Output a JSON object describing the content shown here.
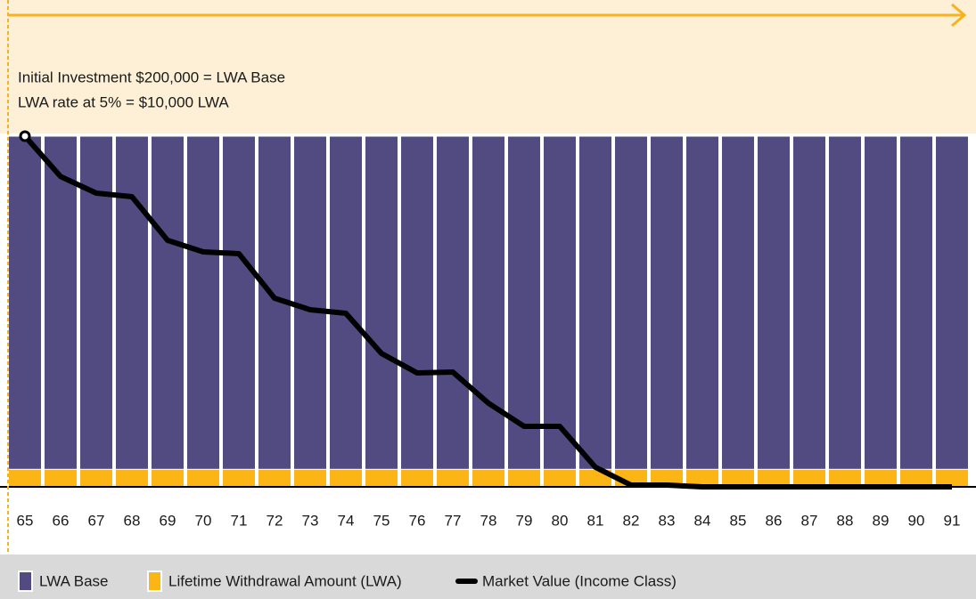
{
  "chart_data": {
    "type": "bar",
    "annotations": [
      "Initial Investment $200,000 = LWA Base",
      "LWA rate at 5% = $10,000 LWA"
    ],
    "categories": [
      "65",
      "66",
      "67",
      "68",
      "69",
      "70",
      "71",
      "72",
      "73",
      "74",
      "75",
      "76",
      "77",
      "78",
      "79",
      "80",
      "81",
      "82",
      "83",
      "84",
      "85",
      "86",
      "87",
      "88",
      "89",
      "90",
      "91"
    ],
    "series": [
      {
        "name": "LWA Base",
        "color": "#514b82",
        "type": "bar",
        "values": [
          200000,
          200000,
          200000,
          200000,
          200000,
          200000,
          200000,
          200000,
          200000,
          200000,
          200000,
          200000,
          200000,
          200000,
          200000,
          200000,
          200000,
          200000,
          200000,
          200000,
          200000,
          200000,
          200000,
          200000,
          200000,
          200000,
          200000
        ]
      },
      {
        "name": "Lifetime Withdrawal Amount (LWA)",
        "color": "#fbb616",
        "type": "bar",
        "values": [
          10000,
          10000,
          10000,
          10000,
          10000,
          10000,
          10000,
          10000,
          10000,
          10000,
          10000,
          10000,
          10000,
          10000,
          10000,
          10000,
          10000,
          10000,
          10000,
          10000,
          10000,
          10000,
          10000,
          10000,
          10000,
          10000,
          10000
        ]
      },
      {
        "name": "Market Value (Income Class)",
        "color": "#000000",
        "type": "line",
        "values": [
          200000,
          177000,
          167500,
          165500,
          140600,
          134000,
          133000,
          107600,
          101000,
          99000,
          76100,
          65000,
          65500,
          47700,
          34500,
          34500,
          11200,
          1000,
          1000,
          0,
          0,
          0,
          0,
          0,
          0,
          0,
          0
        ]
      }
    ],
    "ylim": [
      0,
      200000
    ]
  }
}
